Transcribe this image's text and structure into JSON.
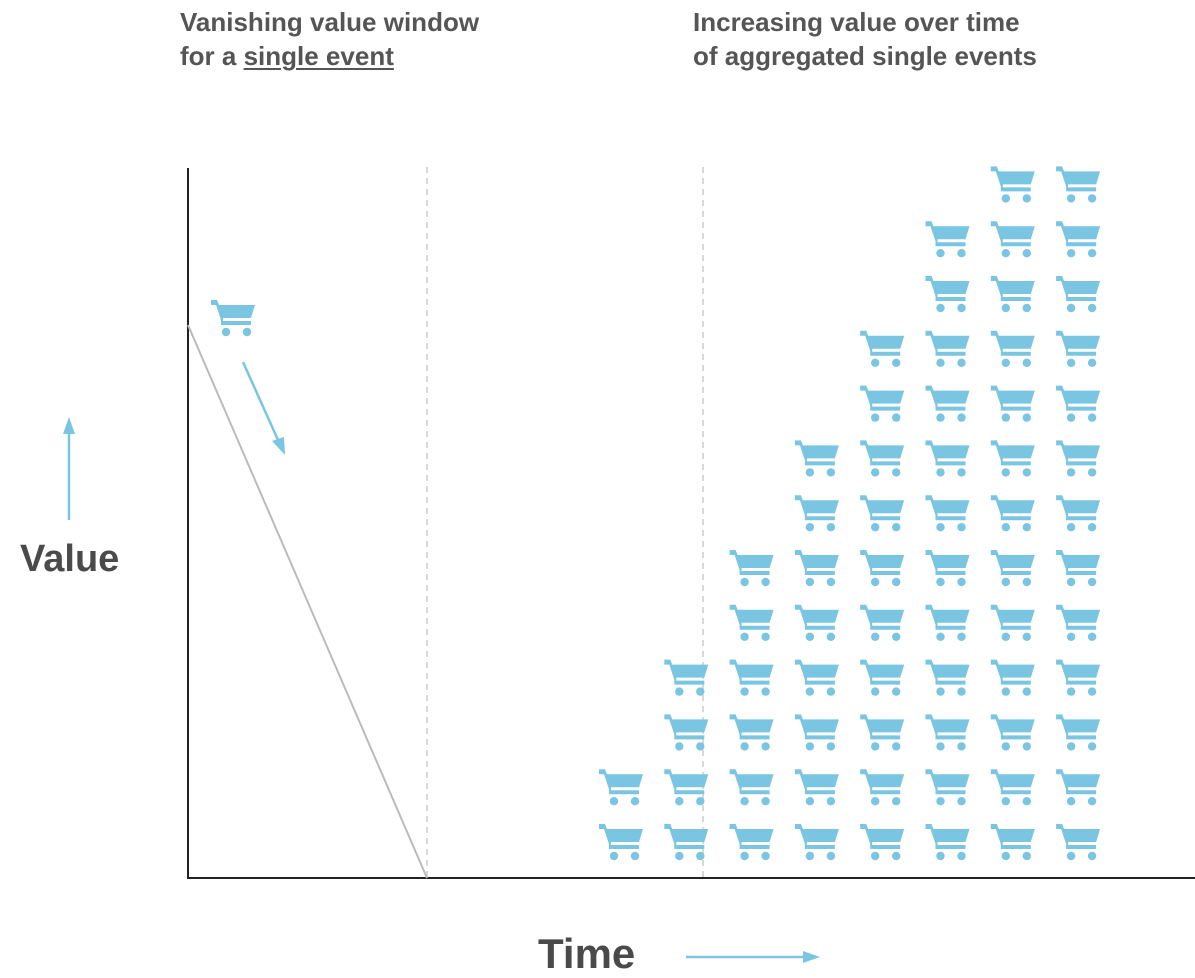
{
  "headings": {
    "left_line1": "Vanishing value window",
    "left_line2_prefix": "for a ",
    "left_line2_emphasis": "single event",
    "right_line1": "Increasing value over time",
    "right_line2": "of aggregated single events"
  },
  "axes": {
    "y_label": "Value",
    "x_label": "Time"
  },
  "icons": {
    "event_icon": "shopping-cart-icon",
    "stack_heights": [
      2,
      4,
      6,
      8,
      10,
      12,
      13,
      13
    ]
  },
  "colors": {
    "accent": "#7ac5e2",
    "text": "#555555",
    "axis": "#222222",
    "decay_line": "#bbbbbb",
    "guide": "#cccccc"
  }
}
